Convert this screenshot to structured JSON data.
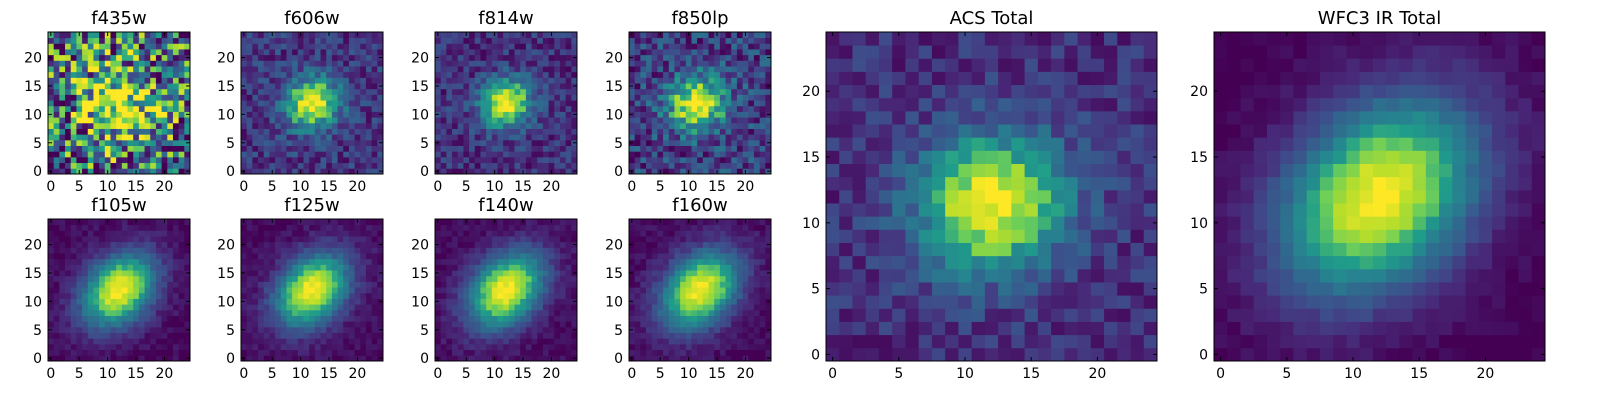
{
  "chart_data": [
    {
      "type": "heatmap",
      "title": "f435w",
      "image_size": [
        25,
        25
      ],
      "xlim": [
        0,
        24
      ],
      "ylim": [
        0,
        24
      ],
      "xticks": [
        0,
        5,
        10,
        15,
        20
      ],
      "yticks": [
        0,
        5,
        10,
        15,
        20
      ],
      "source_center": [
        12,
        12
      ],
      "sigma": [
        5,
        5
      ],
      "theta_deg": 0,
      "noise": 0.55,
      "floor": 0.35,
      "seed": 11
    },
    {
      "type": "heatmap",
      "title": "f606w",
      "image_size": [
        25,
        25
      ],
      "xlim": [
        0,
        24
      ],
      "ylim": [
        0,
        24
      ],
      "xticks": [
        0,
        5,
        10,
        15,
        20
      ],
      "yticks": [
        0,
        5,
        10,
        15,
        20
      ],
      "source_center": [
        12,
        12
      ],
      "sigma": [
        3.4,
        3.1
      ],
      "theta_deg": 30,
      "noise": 0.16,
      "floor": 0.18,
      "seed": 23
    },
    {
      "type": "heatmap",
      "title": "f814w",
      "image_size": [
        25,
        25
      ],
      "xlim": [
        0,
        24
      ],
      "ylim": [
        0,
        24
      ],
      "xticks": [
        0,
        5,
        10,
        15,
        20
      ],
      "yticks": [
        0,
        5,
        10,
        15,
        20
      ],
      "source_center": [
        12,
        12
      ],
      "sigma": [
        3.2,
        2.9
      ],
      "theta_deg": 30,
      "noise": 0.15,
      "floor": 0.16,
      "seed": 37
    },
    {
      "type": "heatmap",
      "title": "f850lp",
      "image_size": [
        25,
        25
      ],
      "xlim": [
        0,
        24
      ],
      "ylim": [
        0,
        24
      ],
      "xticks": [
        0,
        5,
        10,
        15,
        20
      ],
      "yticks": [
        0,
        5,
        10,
        15,
        20
      ],
      "source_center": [
        11.5,
        12
      ],
      "sigma": [
        3.6,
        3.3
      ],
      "theta_deg": 20,
      "noise": 0.22,
      "floor": 0.2,
      "seed": 41
    },
    {
      "type": "heatmap",
      "title": "f105w",
      "image_size": [
        25,
        25
      ],
      "xlim": [
        0,
        24
      ],
      "ylim": [
        0,
        24
      ],
      "xticks": [
        0,
        5,
        10,
        15,
        20
      ],
      "yticks": [
        0,
        5,
        10,
        15,
        20
      ],
      "source_center": [
        12,
        12
      ],
      "sigma": [
        5.2,
        3.8
      ],
      "theta_deg": 45,
      "noise": 0.06,
      "floor": 0.03,
      "seed": 53
    },
    {
      "type": "heatmap",
      "title": "f125w",
      "image_size": [
        25,
        25
      ],
      "xlim": [
        0,
        24
      ],
      "ylim": [
        0,
        24
      ],
      "xticks": [
        0,
        5,
        10,
        15,
        20
      ],
      "yticks": [
        0,
        5,
        10,
        15,
        20
      ],
      "source_center": [
        12,
        12
      ],
      "sigma": [
        5.2,
        3.8
      ],
      "theta_deg": 45,
      "noise": 0.06,
      "floor": 0.03,
      "seed": 61
    },
    {
      "type": "heatmap",
      "title": "f140w",
      "image_size": [
        25,
        25
      ],
      "xlim": [
        0,
        24
      ],
      "ylim": [
        0,
        24
      ],
      "xticks": [
        0,
        5,
        10,
        15,
        20
      ],
      "yticks": [
        0,
        5,
        10,
        15,
        20
      ],
      "source_center": [
        12,
        12
      ],
      "sigma": [
        5.4,
        3.9
      ],
      "theta_deg": 45,
      "noise": 0.06,
      "floor": 0.03,
      "seed": 71
    },
    {
      "type": "heatmap",
      "title": "f160w",
      "image_size": [
        25,
        25
      ],
      "xlim": [
        0,
        24
      ],
      "ylim": [
        0,
        24
      ],
      "xticks": [
        0,
        5,
        10,
        15,
        20
      ],
      "yticks": [
        0,
        5,
        10,
        15,
        20
      ],
      "source_center": [
        12,
        12
      ],
      "sigma": [
        5.5,
        4.0
      ],
      "theta_deg": 45,
      "noise": 0.06,
      "floor": 0.03,
      "seed": 83
    },
    {
      "type": "heatmap",
      "title": "ACS Total",
      "image_size": [
        25,
        25
      ],
      "xlim": [
        0,
        24
      ],
      "ylim": [
        0,
        24
      ],
      "xticks": [
        0,
        5,
        10,
        15,
        20
      ],
      "yticks": [
        0,
        5,
        10,
        15,
        20
      ],
      "source_center": [
        12,
        11.5
      ],
      "sigma": [
        4.0,
        3.6
      ],
      "theta_deg": 20,
      "noise": 0.12,
      "floor": 0.15,
      "seed": 97
    },
    {
      "type": "heatmap",
      "title": "WFC3 IR Total",
      "image_size": [
        25,
        25
      ],
      "xlim": [
        0,
        24
      ],
      "ylim": [
        0,
        24
      ],
      "xticks": [
        0,
        5,
        10,
        15,
        20
      ],
      "yticks": [
        0,
        5,
        10,
        15,
        20
      ],
      "source_center": [
        12,
        12
      ],
      "sigma": [
        6.0,
        4.4
      ],
      "theta_deg": 45,
      "noise": 0.04,
      "floor": 0.0,
      "seed": 101
    }
  ],
  "colormap": [
    "#440154",
    "#482777",
    "#3f4a8a",
    "#31678e",
    "#26838f",
    "#1f9d8a",
    "#6cce5a",
    "#b6de2b",
    "#fee825"
  ]
}
